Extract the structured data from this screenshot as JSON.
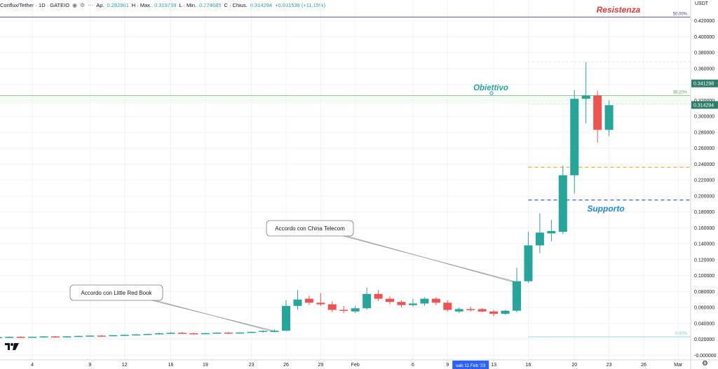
{
  "header": {
    "symbol": "Conflux/Tether · 1D · GATEIO",
    "open_label": "Ap.",
    "open": "0.282981",
    "high_label": "H · Max.",
    "high": "0.319769",
    "low_label": "L · Min.",
    "low": "0.274685",
    "close_label": "C · Chius.",
    "close": "0.314294",
    "change": "+0.031538 (+11.15%)",
    "icons": [
      "eye-icon",
      "settings-icon",
      "more-icon"
    ]
  },
  "colors": {
    "up": "#26a69a",
    "down": "#ef5350",
    "fib_50": "#3f3f9f",
    "fib_382": "#4caf50",
    "fib_0": "#80cbc4",
    "support": "#2962ff",
    "orange": "#ff9800",
    "annot_red": "#e53935",
    "annot_blue": "#1e88e5",
    "annot_teal": "#26a69a",
    "price_tag": "#2e7d6b"
  },
  "chart_data": {
    "type": "candlestick",
    "title": "Conflux/Tether · 1D · GATEIO",
    "currency": "USDT",
    "ylim": [
      -0.01,
      0.43
    ],
    "y_ticks": [
      "0.420000",
      "0.400000",
      "0.380000",
      "0.360000",
      "0.340000",
      "0.320000",
      "0.300000",
      "0.280000",
      "0.260000",
      "0.240000",
      "0.220000",
      "0.200000",
      "0.180000",
      "0.160000",
      "0.140000",
      "0.120000",
      "0.100000",
      "0.080000",
      "0.060000",
      "0.040000",
      "0.020000",
      "-0.000000"
    ],
    "x_ticks": [
      {
        "label": "23",
        "day": -13
      },
      {
        "label": "4",
        "day": 3
      },
      {
        "label": "9",
        "day": 8
      },
      {
        "label": "12",
        "day": 11
      },
      {
        "label": "16",
        "day": 15
      },
      {
        "label": "19",
        "day": 18
      },
      {
        "label": "23",
        "day": 22
      },
      {
        "label": "26",
        "day": 25
      },
      {
        "label": "29",
        "day": 28
      },
      {
        "label": "Feb",
        "day": 31
      },
      {
        "label": "6",
        "day": 36
      },
      {
        "label": "9",
        "day": 39
      },
      {
        "label": "13",
        "day": 43
      },
      {
        "label": "16",
        "day": 46
      },
      {
        "label": "20",
        "day": 50
      },
      {
        "label": "23",
        "day": 53
      },
      {
        "label": "26",
        "day": 56
      },
      {
        "label": "Mar",
        "day": 59
      }
    ],
    "highlight_x": {
      "label": "sab 11 Feb '23",
      "day": 41
    },
    "candles": [
      {
        "day": -12,
        "o": 0.021,
        "h": 0.022,
        "l": 0.02,
        "c": 0.0213
      },
      {
        "day": -11,
        "o": 0.0213,
        "h": 0.022,
        "l": 0.0205,
        "c": 0.021
      },
      {
        "day": -10,
        "o": 0.021,
        "h": 0.0222,
        "l": 0.0205,
        "c": 0.0217
      },
      {
        "day": -9,
        "o": 0.0217,
        "h": 0.0225,
        "l": 0.021,
        "c": 0.022
      },
      {
        "day": -8,
        "o": 0.022,
        "h": 0.0228,
        "l": 0.0212,
        "c": 0.0215
      },
      {
        "day": -7,
        "o": 0.0215,
        "h": 0.0225,
        "l": 0.021,
        "c": 0.022
      },
      {
        "day": -6,
        "o": 0.022,
        "h": 0.0228,
        "l": 0.0215,
        "c": 0.0224
      },
      {
        "day": -5,
        "o": 0.0224,
        "h": 0.023,
        "l": 0.0218,
        "c": 0.0228
      },
      {
        "day": -4,
        "o": 0.0228,
        "h": 0.0232,
        "l": 0.0218,
        "c": 0.0222
      },
      {
        "day": -3,
        "o": 0.0222,
        "h": 0.023,
        "l": 0.0215,
        "c": 0.0226
      },
      {
        "day": -2,
        "o": 0.0226,
        "h": 0.0232,
        "l": 0.022,
        "c": 0.0229
      },
      {
        "day": -1,
        "o": 0.0229,
        "h": 0.0235,
        "l": 0.0222,
        "c": 0.0225
      },
      {
        "day": 0,
        "o": 0.0225,
        "h": 0.0232,
        "l": 0.022,
        "c": 0.0228
      },
      {
        "day": 1,
        "o": 0.0228,
        "h": 0.0236,
        "l": 0.0222,
        "c": 0.0232
      },
      {
        "day": 2,
        "o": 0.0232,
        "h": 0.0238,
        "l": 0.0225,
        "c": 0.0228
      },
      {
        "day": 3,
        "o": 0.0228,
        "h": 0.0236,
        "l": 0.0222,
        "c": 0.0233
      },
      {
        "day": 4,
        "o": 0.0233,
        "h": 0.024,
        "l": 0.0228,
        "c": 0.0237
      },
      {
        "day": 5,
        "o": 0.0237,
        "h": 0.0242,
        "l": 0.023,
        "c": 0.0232
      },
      {
        "day": 6,
        "o": 0.0232,
        "h": 0.024,
        "l": 0.0226,
        "c": 0.0238
      },
      {
        "day": 7,
        "o": 0.0238,
        "h": 0.0246,
        "l": 0.0232,
        "c": 0.0243
      },
      {
        "day": 8,
        "o": 0.0243,
        "h": 0.025,
        "l": 0.0236,
        "c": 0.0247
      },
      {
        "day": 9,
        "o": 0.0247,
        "h": 0.0255,
        "l": 0.024,
        "c": 0.0244
      },
      {
        "day": 10,
        "o": 0.0244,
        "h": 0.0255,
        "l": 0.0238,
        "c": 0.0252
      },
      {
        "day": 11,
        "o": 0.0252,
        "h": 0.026,
        "l": 0.0245,
        "c": 0.0256
      },
      {
        "day": 12,
        "o": 0.0256,
        "h": 0.0266,
        "l": 0.025,
        "c": 0.0262
      },
      {
        "day": 13,
        "o": 0.0262,
        "h": 0.0272,
        "l": 0.0255,
        "c": 0.0268
      },
      {
        "day": 14,
        "o": 0.0268,
        "h": 0.0285,
        "l": 0.026,
        "c": 0.0276
      },
      {
        "day": 15,
        "o": 0.0276,
        "h": 0.029,
        "l": 0.027,
        "c": 0.0282
      },
      {
        "day": 16,
        "o": 0.0282,
        "h": 0.0292,
        "l": 0.0272,
        "c": 0.0276
      },
      {
        "day": 17,
        "o": 0.0276,
        "h": 0.0285,
        "l": 0.0268,
        "c": 0.0272
      },
      {
        "day": 18,
        "o": 0.0272,
        "h": 0.0282,
        "l": 0.0265,
        "c": 0.0278
      },
      {
        "day": 19,
        "o": 0.0278,
        "h": 0.0288,
        "l": 0.0272,
        "c": 0.0284
      },
      {
        "day": 20,
        "o": 0.0284,
        "h": 0.0292,
        "l": 0.0275,
        "c": 0.0279
      },
      {
        "day": 21,
        "o": 0.0279,
        "h": 0.029,
        "l": 0.0272,
        "c": 0.0286
      },
      {
        "day": 22,
        "o": 0.0286,
        "h": 0.0298,
        "l": 0.028,
        "c": 0.0294
      },
      {
        "day": 23,
        "o": 0.0294,
        "h": 0.0315,
        "l": 0.0285,
        "c": 0.0306
      },
      {
        "day": 24,
        "o": 0.0292,
        "h": 0.0325,
        "l": 0.029,
        "c": 0.0308
      },
      {
        "day": 25,
        "o": 0.0308,
        "h": 0.069,
        "l": 0.0305,
        "c": 0.062
      },
      {
        "day": 26,
        "o": 0.062,
        "h": 0.082,
        "l": 0.057,
        "c": 0.07
      },
      {
        "day": 27,
        "o": 0.071,
        "h": 0.075,
        "l": 0.063,
        "c": 0.066
      },
      {
        "day": 28,
        "o": 0.066,
        "h": 0.078,
        "l": 0.062,
        "c": 0.064
      },
      {
        "day": 29,
        "o": 0.064,
        "h": 0.068,
        "l": 0.054,
        "c": 0.057
      },
      {
        "day": 30,
        "o": 0.057,
        "h": 0.062,
        "l": 0.053,
        "c": 0.056
      },
      {
        "day": 31,
        "o": 0.055,
        "h": 0.062,
        "l": 0.053,
        "c": 0.059
      },
      {
        "day": 32,
        "o": 0.059,
        "h": 0.085,
        "l": 0.057,
        "c": 0.077
      },
      {
        "day": 33,
        "o": 0.077,
        "h": 0.082,
        "l": 0.068,
        "c": 0.071
      },
      {
        "day": 34,
        "o": 0.071,
        "h": 0.074,
        "l": 0.064,
        "c": 0.067
      },
      {
        "day": 35,
        "o": 0.067,
        "h": 0.069,
        "l": 0.06,
        "c": 0.063
      },
      {
        "day": 36,
        "o": 0.063,
        "h": 0.071,
        "l": 0.061,
        "c": 0.065
      },
      {
        "day": 37,
        "o": 0.065,
        "h": 0.073,
        "l": 0.062,
        "c": 0.071
      },
      {
        "day": 38,
        "o": 0.071,
        "h": 0.073,
        "l": 0.063,
        "c": 0.066
      },
      {
        "day": 39,
        "o": 0.066,
        "h": 0.069,
        "l": 0.055,
        "c": 0.057
      },
      {
        "day": 40,
        "o": 0.055,
        "h": 0.06,
        "l": 0.053,
        "c": 0.058
      },
      {
        "day": 41,
        "o": 0.058,
        "h": 0.061,
        "l": 0.055,
        "c": 0.057
      },
      {
        "day": 42,
        "o": 0.058,
        "h": 0.059,
        "l": 0.054,
        "c": 0.055
      },
      {
        "day": 43,
        "o": 0.055,
        "h": 0.057,
        "l": 0.049,
        "c": 0.052
      },
      {
        "day": 44,
        "o": 0.052,
        "h": 0.057,
        "l": 0.051,
        "c": 0.056
      },
      {
        "day": 45,
        "o": 0.056,
        "h": 0.11,
        "l": 0.054,
        "c": 0.093
      },
      {
        "day": 46,
        "o": 0.093,
        "h": 0.155,
        "l": 0.091,
        "c": 0.138
      },
      {
        "day": 47,
        "o": 0.138,
        "h": 0.178,
        "l": 0.128,
        "c": 0.154
      },
      {
        "day": 48,
        "o": 0.153,
        "h": 0.17,
        "l": 0.143,
        "c": 0.156
      },
      {
        "day": 49,
        "o": 0.155,
        "h": 0.238,
        "l": 0.152,
        "c": 0.226
      },
      {
        "day": 50,
        "o": 0.226,
        "h": 0.333,
        "l": 0.203,
        "c": 0.322
      },
      {
        "day": 51,
        "o": 0.322,
        "h": 0.368,
        "l": 0.291,
        "c": 0.326
      },
      {
        "day": 52,
        "o": 0.326,
        "h": 0.332,
        "l": 0.267,
        "c": 0.283
      },
      {
        "day": 53,
        "o": 0.283,
        "h": 0.32,
        "l": 0.275,
        "c": 0.314
      }
    ],
    "fib_levels": [
      {
        "label": "50.00%",
        "value": 0.4247
      },
      {
        "label": "38.20%",
        "value": 0.3262
      },
      {
        "label": "0.00%",
        "value": 0.0232
      }
    ],
    "fib_extra": [
      0.3686,
      0.3156
    ],
    "hlines": [
      {
        "value": 0.236,
        "style": "orange-dashed"
      },
      {
        "value": 0.195,
        "style": "blue-dashed"
      }
    ],
    "price_tags": [
      "0.341298",
      "0.314294"
    ],
    "annotations": [
      {
        "text": "Resistenza",
        "kind": "red-label"
      },
      {
        "text": "Obiettivo",
        "kind": "target"
      },
      {
        "text": "Supporto",
        "kind": "blue-label"
      },
      {
        "text": "Accordo con China Telecom",
        "kind": "callout"
      },
      {
        "text": "Accordo con Little Red Book",
        "kind": "callout"
      }
    ]
  }
}
